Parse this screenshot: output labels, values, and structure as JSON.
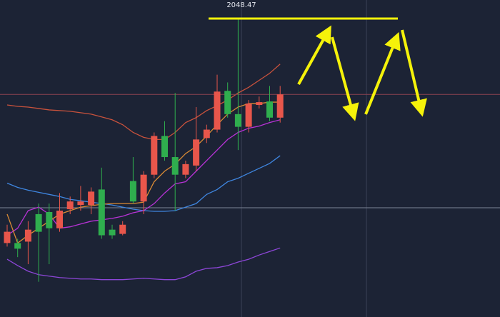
{
  "chart_data": {
    "type": "candlestick",
    "ylim": [
      2006,
      2051
    ],
    "up_color": "#e8564b",
    "down_color": "#2fae4e",
    "open": [
      2016.5,
      2016.5,
      2016.7,
      2020.6,
      2020.9,
      2018.6,
      2021.3,
      2021.9,
      2021.9,
      2024.1,
      2018.4,
      2017.8,
      2025.3,
      2022.4,
      2026.2,
      2031.7,
      2028.7,
      2026.2,
      2027.5,
      2031.4,
      2032.6,
      2038.1,
      2034.8,
      2033.0,
      2036.1,
      2036.6,
      2034.3
    ],
    "high": [
      2019.1,
      2017.1,
      2019.6,
      2022.1,
      2022.1,
      2023.6,
      2023.1,
      2024.6,
      2024.4,
      2027.2,
      2019.1,
      2019.6,
      2028.7,
      2026.7,
      2032.2,
      2033.8,
      2037.8,
      2028.2,
      2035.8,
      2033.3,
      2040.4,
      2039.3,
      2048.47,
      2036.8,
      2037.3,
      2038.8,
      2038.8
    ],
    "low": [
      2016.0,
      2014.5,
      2013.5,
      2011.0,
      2013.5,
      2018.1,
      2020.6,
      2021.1,
      2020.6,
      2017.1,
      2017.1,
      2017.6,
      2022.1,
      2020.6,
      2025.7,
      2028.2,
      2021.1,
      2025.7,
      2026.7,
      2030.7,
      2032.2,
      2034.3,
      2029.7,
      2032.2,
      2035.6,
      2033.8,
      2033.6
    ],
    "close": [
      2018.1,
      2015.7,
      2018.4,
      2018.1,
      2018.6,
      2021.1,
      2022.4,
      2022.4,
      2023.8,
      2017.6,
      2017.6,
      2019.1,
      2022.4,
      2026.2,
      2031.7,
      2028.7,
      2026.2,
      2027.7,
      2031.2,
      2032.6,
      2038.0,
      2034.8,
      2033.0,
      2036.3,
      2036.5,
      2034.3,
      2037.6
    ],
    "series": [
      {
        "color": "#c9523c",
        "values": [
          2036.1,
          2035.9,
          2035.8,
          2035.6,
          2035.4,
          2035.3,
          2035.2,
          2035.0,
          2034.8,
          2034.4,
          2034.0,
          2033.3,
          2032.2,
          2031.5,
          2031.2,
          2031.2,
          2032.2,
          2033.6,
          2034.3,
          2035.3,
          2036.0,
          2036.8,
          2037.8,
          2038.6,
          2039.6,
          2040.6,
          2041.9
        ]
      },
      {
        "color": "#8d46d8",
        "values": [
          2014.2,
          2013.3,
          2012.5,
          2012.0,
          2011.8,
          2011.6,
          2011.5,
          2011.4,
          2011.4,
          2011.3,
          2011.3,
          2011.3,
          2011.4,
          2011.5,
          2011.4,
          2011.3,
          2011.3,
          2011.7,
          2012.5,
          2012.9,
          2013.0,
          2013.3,
          2013.8,
          2014.2,
          2014.8,
          2015.3,
          2015.8
        ]
      },
      {
        "color": "#3f86e0",
        "values": [
          2025.0,
          2024.4,
          2024.0,
          2023.7,
          2023.4,
          2023.1,
          2022.7,
          2022.5,
          2022.3,
          2022.1,
          2021.9,
          2021.6,
          2021.3,
          2021.1,
          2021.0,
          2021.0,
          2021.1,
          2021.6,
          2022.1,
          2023.4,
          2024.1,
          2025.2,
          2025.7,
          2026.4,
          2027.1,
          2027.8,
          2028.9
        ]
      },
      {
        "color": "#b832d6",
        "values": [
          2017.6,
          2018.6,
          2021.1,
          2021.6,
          2020.6,
          2018.6,
          2018.8,
          2019.2,
          2019.6,
          2019.8,
          2020.0,
          2020.3,
          2020.8,
          2021.1,
          2022.1,
          2023.6,
          2024.9,
          2025.2,
          2026.7,
          2028.2,
          2029.7,
          2031.2,
          2032.2,
          2032.8,
          2033.1,
          2033.6,
          2034.0
        ]
      },
      {
        "color": "#d98a35",
        "values": [
          2020.6,
          2016.5,
          2017.6,
          2018.6,
          2019.6,
          2020.6,
          2021.1,
          2021.6,
          2021.8,
          2022.0,
          2022.1,
          2022.1,
          2022.1,
          2022.3,
          2025.2,
          2026.7,
          2027.7,
          2029.2,
          2030.2,
          2031.7,
          2033.3,
          2034.8,
          2035.8,
          2036.3,
          2036.3,
          2036.5,
          2036.5
        ]
      }
    ]
  }
}
